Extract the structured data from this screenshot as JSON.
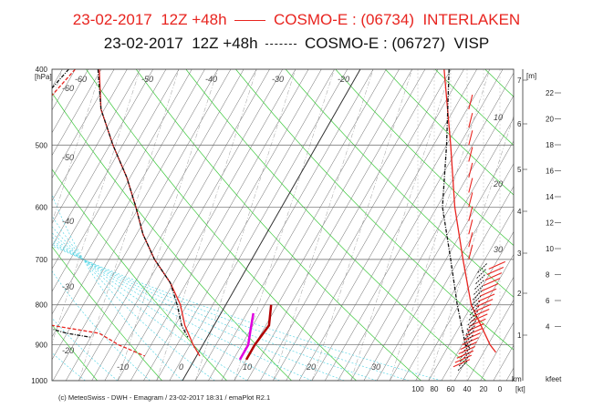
{
  "header": {
    "line1": {
      "date": "23-02-2017",
      "run": "12Z +48h",
      "model": "COSMO-E : (06734)",
      "station": "INTERLAKEN",
      "color": "#e8241f"
    },
    "line2": {
      "date": "23-02-2017",
      "run": "12Z +48h",
      "model": "COSMO-E : (06727)",
      "station": "VISP",
      "color": "#111111"
    }
  },
  "footer": "(c) MeteoSwiss - DWH - Emagram / 23-02-2017  18:31  / emaPlot R2.1",
  "chart_data": {
    "type": "line",
    "title": "",
    "yaxis_unit": "[hPa]",
    "pressure_ticks": [
      "400",
      "500",
      "600",
      "700",
      "800",
      "900",
      "1000"
    ],
    "pressure_values": [
      400,
      500,
      600,
      700,
      800,
      900,
      1000
    ],
    "isotherm_labels": [
      "-60",
      "-60",
      "-50",
      "-40",
      "-30",
      "-20",
      "-50",
      "-40",
      "-30",
      "-20",
      "-10",
      "0",
      "10",
      "20",
      "30"
    ],
    "temp_axis_labels": [
      "-10",
      "0",
      "10",
      "20",
      "30"
    ],
    "wind_axis_unit": "[kt]",
    "wind_axis_labels": [
      "100",
      "80",
      "60",
      "40",
      "20",
      "0"
    ],
    "height_axis_unit": "[m]",
    "height_axis_labels": [
      "7",
      "6",
      "5",
      "4",
      "3",
      "2",
      "1"
    ],
    "km_label": "km",
    "kfeet_label": "kfeet",
    "kfeet_axis_labels": [
      "22",
      "20",
      "18",
      "16",
      "14",
      "12",
      "10",
      "8",
      "6",
      "4"
    ],
    "mixing_ratio_labels": [
      "10",
      "20",
      "30"
    ],
    "series": [
      {
        "name": "INTERLAKEN",
        "color": "#e8241f",
        "temperature": [
          [
            400,
            -40.3
          ],
          [
            450,
            -36.5
          ],
          [
            500,
            -31.5
          ],
          [
            550,
            -26.5
          ],
          [
            600,
            -22.5
          ],
          [
            650,
            -19
          ],
          [
            700,
            -15
          ],
          [
            750,
            -10.5
          ],
          [
            800,
            -7
          ],
          [
            850,
            -4.5
          ],
          [
            900,
            -1.5
          ],
          [
            930,
            0.5
          ]
        ],
        "dewpoint": [
          [
            400,
            -44
          ],
          [
            450,
            -46
          ],
          [
            500,
            -44
          ],
          [
            550,
            -40
          ],
          [
            600,
            -38
          ],
          [
            650,
            -37
          ],
          [
            700,
            -38
          ],
          [
            750,
            -36
          ],
          [
            800,
            -31
          ],
          [
            850,
            -25
          ],
          [
            870,
            -17
          ],
          [
            900,
            -13
          ],
          [
            930,
            -8
          ]
        ],
        "wind_speed": [
          [
            400,
            68
          ],
          [
            500,
            60
          ],
          [
            600,
            55
          ],
          [
            700,
            45
          ],
          [
            800,
            35
          ],
          [
            900,
            12
          ],
          [
            920,
            5
          ]
        ]
      },
      {
        "name": "VISP",
        "color": "#111111",
        "temperature": [
          [
            400,
            -40.5
          ],
          [
            450,
            -36.5
          ],
          [
            500,
            -31.5
          ],
          [
            550,
            -26.5
          ],
          [
            600,
            -22.5
          ],
          [
            650,
            -19
          ],
          [
            700,
            -15
          ],
          [
            750,
            -10.5
          ],
          [
            800,
            -7.5
          ],
          [
            850,
            -5
          ],
          [
            880,
            -3
          ]
        ],
        "dewpoint": [
          [
            400,
            -45
          ],
          [
            450,
            -47
          ],
          [
            500,
            -45
          ],
          [
            550,
            -41
          ],
          [
            600,
            -39
          ],
          [
            650,
            -38
          ],
          [
            700,
            -38
          ],
          [
            750,
            -36
          ],
          [
            800,
            -31
          ],
          [
            850,
            -27
          ],
          [
            870,
            -22
          ],
          [
            880,
            -18
          ]
        ],
        "wind_speed": [
          [
            400,
            62
          ],
          [
            500,
            65
          ],
          [
            600,
            70
          ],
          [
            700,
            60
          ],
          [
            800,
            52
          ],
          [
            900,
            42
          ],
          [
            910,
            35
          ]
        ]
      }
    ],
    "extra_lines": [
      {
        "name": "",
        "color": "#b00000",
        "points": [
          [
            800,
            7
          ],
          [
            850,
            8.5
          ],
          [
            900,
            8
          ],
          [
            940,
            8
          ]
        ]
      },
      {
        "name": "",
        "color": "#e000e0",
        "points": [
          [
            820,
            5
          ],
          [
            860,
            6
          ],
          [
            900,
            7
          ],
          [
            940,
            7
          ]
        ]
      }
    ],
    "grid": true
  }
}
